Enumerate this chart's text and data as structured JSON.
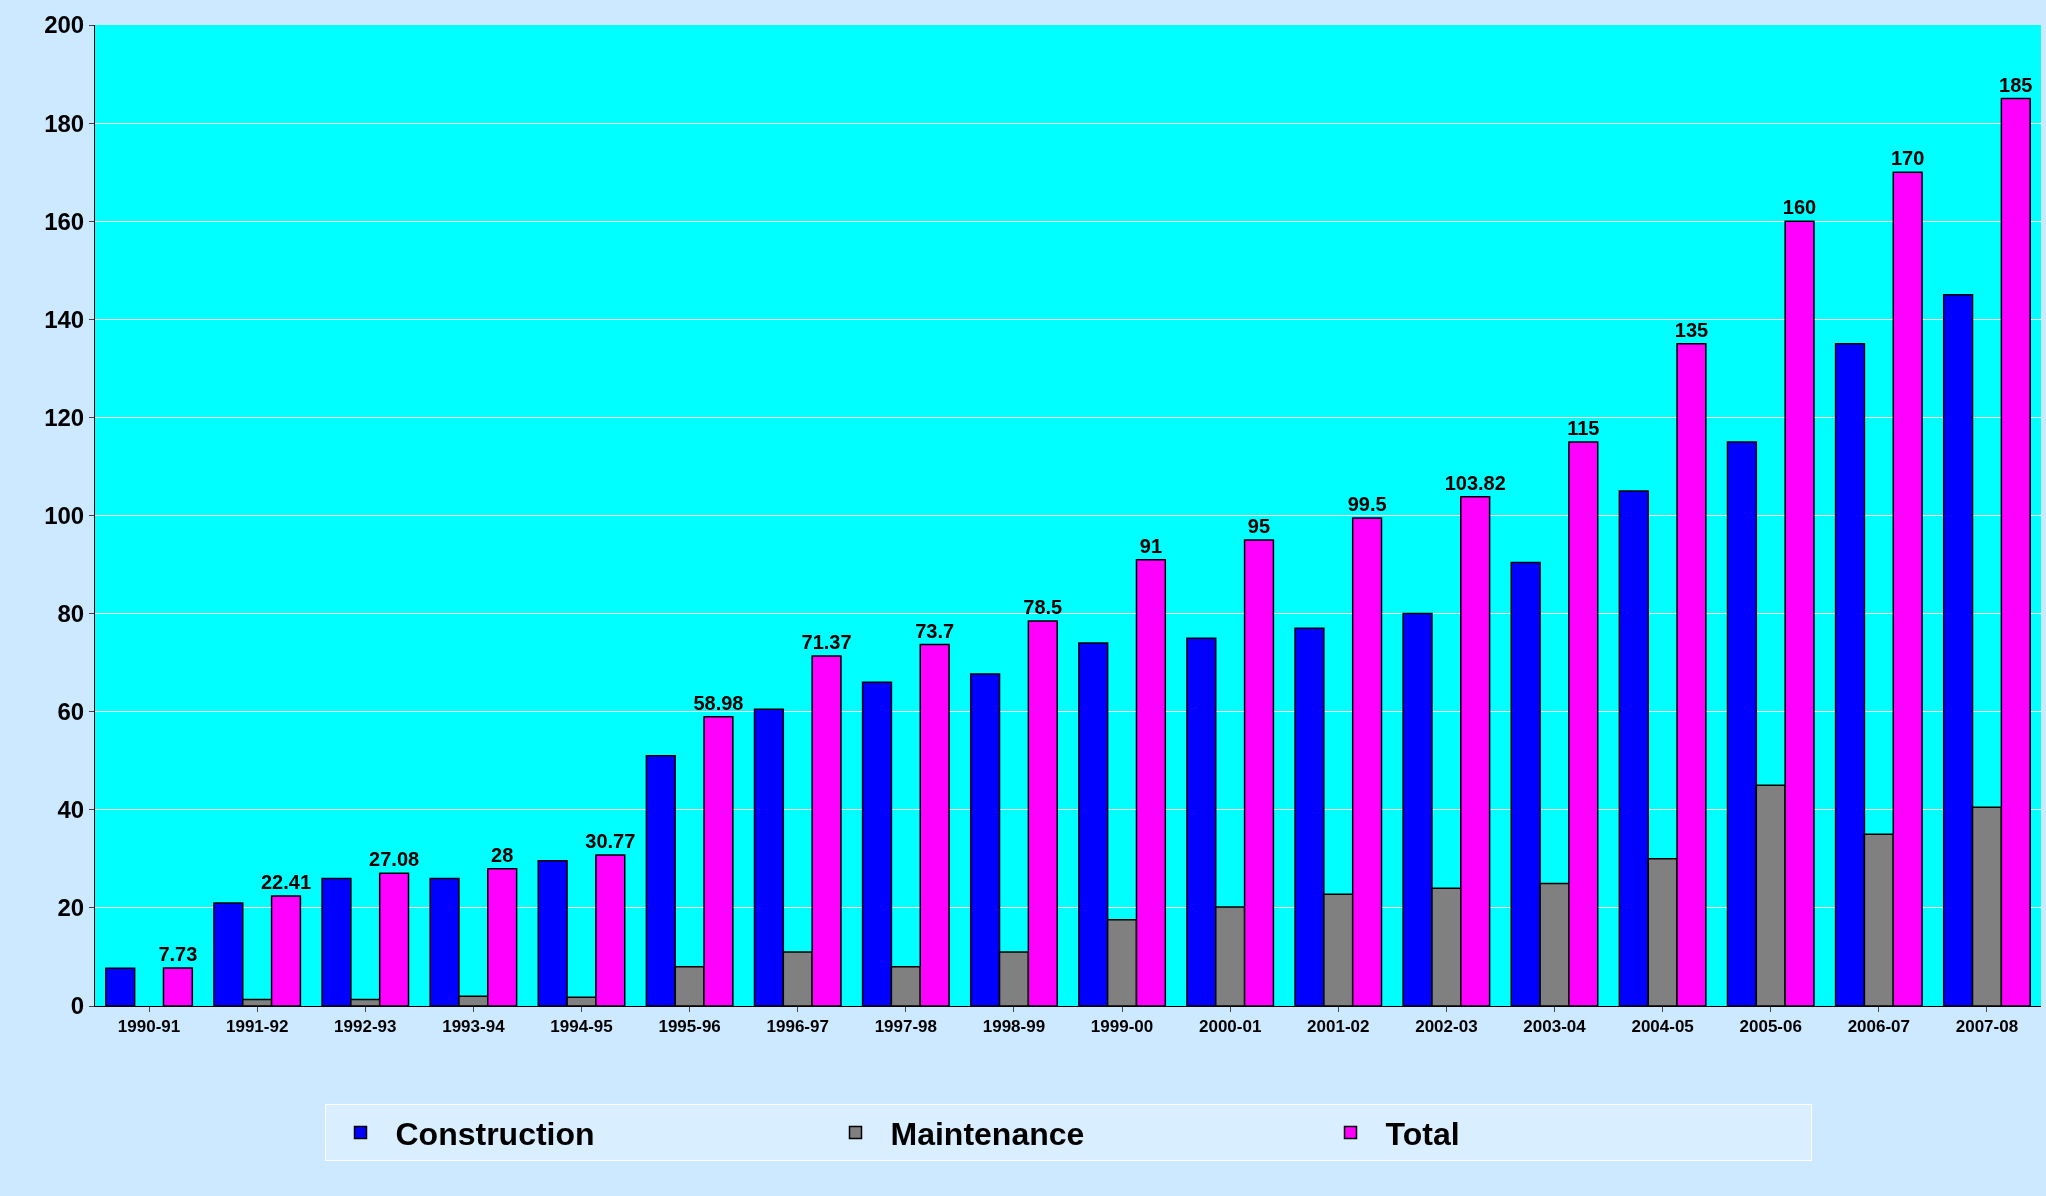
{
  "chart_data": {
    "type": "bar",
    "categories": [
      "1990-91",
      "1991-92",
      "1992-93",
      "1993-94",
      "1994-95",
      "1995-96",
      "1996-97",
      "1997-98",
      "1998-99",
      "1999-00",
      "2000-01",
      "2001-02",
      "2002-03",
      "2003-04",
      "2004-05",
      "2005-06",
      "2006-07",
      "2007-08"
    ],
    "series": [
      {
        "name": "Construction",
        "color": "#0000ff",
        "values": [
          7.7,
          21,
          26,
          26,
          29.6,
          51,
          60.5,
          66,
          67.7,
          74,
          75,
          77,
          80,
          90.4,
          105,
          115,
          135,
          145
        ]
      },
      {
        "name": "Maintenance",
        "color": "#808080",
        "values": [
          null,
          1.3,
          1.3,
          2,
          1.8,
          8,
          11,
          8,
          11,
          17.6,
          20.2,
          22.8,
          24,
          25,
          30,
          45,
          35,
          40.5
        ]
      },
      {
        "name": "Total",
        "color": "#ff00ff",
        "values": [
          7.73,
          22.41,
          27.08,
          28,
          30.77,
          58.98,
          71.37,
          73.7,
          78.5,
          91,
          95,
          99.5,
          103.82,
          115,
          135,
          160,
          170,
          185
        ],
        "value_labels": [
          "7.73",
          "22.41",
          "27.08",
          "28",
          "30.77",
          "58.98",
          "71.37",
          "73.7",
          "78.5",
          "91",
          "95",
          "99.5",
          "103.82",
          "115",
          "135",
          "160",
          "170",
          "185"
        ]
      }
    ],
    "ylim": [
      0,
      200
    ],
    "yticks": [
      0,
      20,
      40,
      60,
      80,
      100,
      120,
      140,
      160,
      180,
      200
    ],
    "grid": "y",
    "legend": "bottom"
  }
}
